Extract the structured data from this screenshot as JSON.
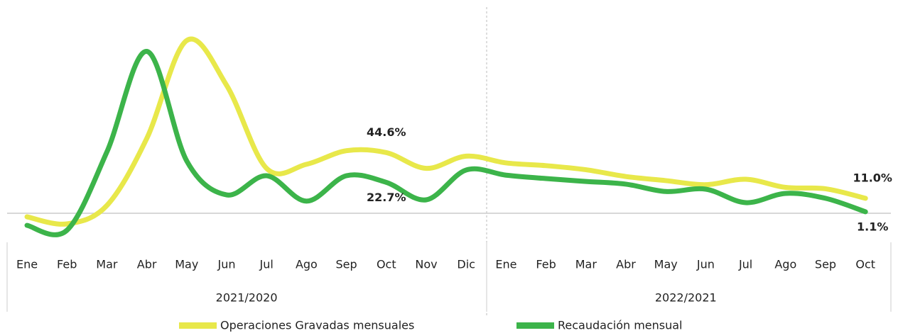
{
  "chart_data": {
    "type": "line",
    "category_groups": [
      {
        "label": "2021/2020",
        "categories": [
          "Ene",
          "Feb",
          "Mar",
          "Abr",
          "May",
          "Jun",
          "Jul",
          "Ago",
          "Sep",
          "Oct",
          "Nov",
          "Dic"
        ]
      },
      {
        "label": "2022/2021",
        "categories": [
          "Ene",
          "Feb",
          "Mar",
          "Abr",
          "May",
          "Jun",
          "Jul",
          "Ago",
          "Sep",
          "Oct"
        ]
      }
    ],
    "series": [
      {
        "name": "Operaciones Gravadas mensuales",
        "color": "#e8e84a",
        "values": [
          -2.6,
          -7.8,
          5.7,
          55,
          127,
          94,
          33,
          36,
          46,
          44.6,
          33,
          42,
          37,
          35,
          32,
          27,
          24,
          21,
          25,
          19,
          18,
          11.0
        ],
        "value_labels": [
          null,
          null,
          null,
          null,
          null,
          null,
          null,
          null,
          null,
          "44.6%",
          null,
          null,
          null,
          null,
          null,
          null,
          null,
          null,
          null,
          null,
          null,
          "11.0%"
        ]
      },
      {
        "name": "Recaudación mensual",
        "color": "#3cb44a",
        "values": [
          -8.9,
          -12.5,
          45,
          119,
          38.5,
          13.5,
          27.6,
          8.9,
          27.6,
          22.7,
          9.9,
          31.8,
          28,
          25.5,
          23.4,
          21.4,
          16,
          17.7,
          7.8,
          14.6,
          11,
          1.1
        ],
        "value_labels": [
          null,
          null,
          null,
          null,
          null,
          null,
          null,
          null,
          null,
          "22.7%",
          null,
          null,
          null,
          null,
          null,
          null,
          null,
          null,
          null,
          null,
          null,
          "1.1%"
        ]
      }
    ]
  }
}
